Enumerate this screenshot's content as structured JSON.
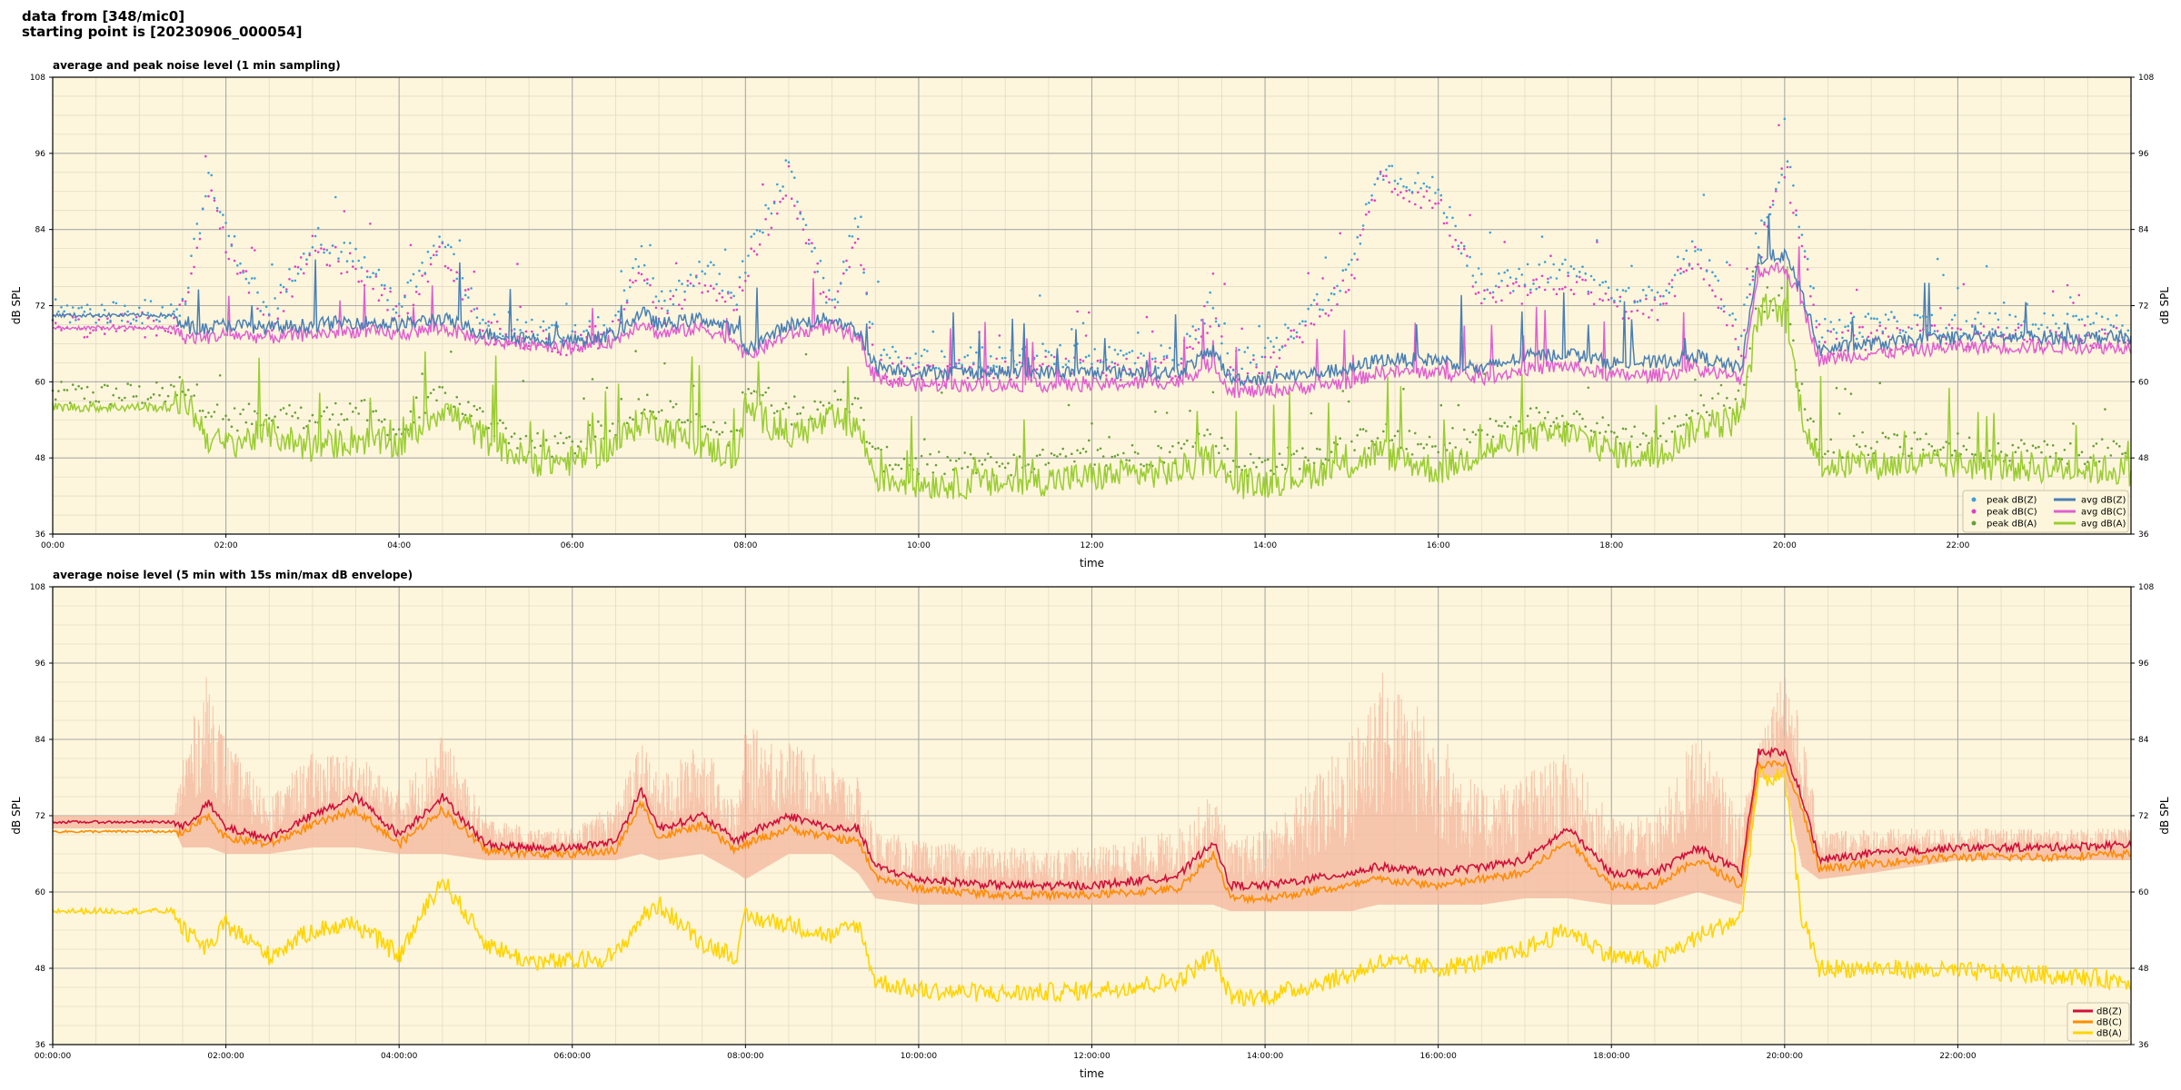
{
  "header": {
    "line1": "data from [348/mic0]",
    "line2": "starting point is [20230906_000054]"
  },
  "colors": {
    "background": "#fdf6dc",
    "grid_major": "#a9a9a9",
    "grid_minor": "#e3dcc4",
    "peak_z": "#3ea0d8",
    "peak_c": "#e040c8",
    "peak_a": "#6a9f3a",
    "avg_z": "#4a7fb4",
    "avg_c": "#e060d0",
    "avg_a": "#9acd32",
    "dbz": "#d0103a",
    "dbc": "#ff8c00",
    "dba": "#ffd400",
    "envelope": "#f5b9a0"
  },
  "chart_data": [
    {
      "type": "line",
      "title": "average and peak noise level (1 min sampling)",
      "xlabel": "time",
      "ylabel": "dB SPL",
      "ylabel_right": "dB SPL",
      "xlim": [
        0,
        24
      ],
      "ylim": [
        36,
        108
      ],
      "yticks": [
        "36",
        "48",
        "60",
        "72",
        "84",
        "96",
        "108"
      ],
      "xtick_hours": [
        0,
        2,
        4,
        6,
        8,
        10,
        12,
        14,
        16,
        18,
        20,
        22
      ],
      "xticks": [
        "00:00",
        "02:00",
        "04:00",
        "06:00",
        "08:00",
        "10:00",
        "12:00",
        "14:00",
        "16:00",
        "18:00",
        "20:00",
        "22:00"
      ],
      "grid": true,
      "legend_position": "lower-right",
      "legend": [
        "peak dB(Z)",
        "peak dB(C)",
        "peak dB(A)",
        "avg dB(Z)",
        "avg dB(C)",
        "avg dB(A)"
      ],
      "x": [
        0.0,
        1.4,
        1.5,
        1.8,
        2.0,
        2.5,
        3.0,
        3.5,
        4.0,
        4.5,
        5.0,
        5.5,
        6.0,
        6.5,
        6.8,
        7.0,
        7.5,
        7.9,
        8.0,
        8.5,
        9.0,
        9.3,
        9.5,
        10.0,
        11.0,
        12.0,
        13.0,
        13.4,
        13.6,
        14.0,
        15.0,
        15.3,
        16.0,
        16.5,
        17.0,
        17.5,
        18.0,
        18.5,
        19.0,
        19.5,
        19.7,
        20.0,
        20.2,
        20.4,
        21.0,
        22.0,
        23.0,
        24.0
      ],
      "series": [
        {
          "name": "avg dB(Z)",
          "values": [
            70.5,
            70.5,
            68.5,
            68.5,
            69,
            68.5,
            69,
            69.5,
            69,
            70,
            67.5,
            67,
            66.5,
            67.5,
            71,
            69,
            70,
            68,
            65,
            69,
            70,
            68,
            62.5,
            61.5,
            61.5,
            61.5,
            61.5,
            65,
            60.5,
            60.5,
            62,
            63.5,
            63.5,
            62,
            64,
            64.5,
            63,
            63,
            64,
            62,
            79.5,
            80,
            74,
            65,
            66,
            67,
            67,
            67
          ]
        },
        {
          "name": "avg dB(C)",
          "values": [
            68.5,
            68.5,
            67,
            67,
            67.5,
            67,
            67.5,
            68,
            67.5,
            68.5,
            66.5,
            66,
            65.5,
            66.5,
            69.5,
            67.5,
            68.5,
            66.5,
            64,
            67.5,
            68.5,
            66.5,
            60.5,
            59.5,
            59.5,
            59.5,
            60,
            63,
            58.5,
            58.5,
            60,
            61.5,
            61.5,
            60.5,
            62,
            62.5,
            61,
            61,
            62,
            60.5,
            77.5,
            78,
            72.5,
            63.5,
            64.5,
            65.5,
            65.5,
            65.5
          ]
        },
        {
          "name": "avg dB(A)",
          "values": [
            56,
            56,
            58,
            51,
            50,
            52,
            49.5,
            51,
            50,
            56,
            51,
            47.5,
            47.5,
            50,
            54,
            53,
            50,
            48,
            56,
            51.5,
            54,
            53,
            45,
            44,
            44,
            45,
            46,
            48,
            44,
            44,
            47,
            49,
            46,
            49,
            51,
            52,
            49,
            48,
            53,
            54,
            71,
            71,
            55,
            47,
            47,
            47,
            46.5,
            46
          ]
        },
        {
          "name": "peak dB(Z)",
          "values": [
            71,
            71,
            72,
            92,
            84,
            70,
            83,
            80,
            72,
            82,
            69,
            68,
            67,
            69,
            80,
            72,
            78,
            74,
            79,
            94,
            71,
            86,
            64,
            63,
            64,
            64,
            64,
            73,
            63,
            64,
            78,
            94,
            90,
            75,
            76,
            78,
            74,
            73,
            82,
            66,
            82,
            96,
            84,
            68,
            69,
            69,
            69,
            69
          ]
        },
        {
          "name": "peak dB(C)",
          "values": [
            69,
            69,
            71,
            90,
            82,
            69,
            81,
            78,
            71,
            80,
            68,
            67,
            66,
            68,
            78,
            70,
            76,
            72,
            77,
            92,
            70,
            84,
            62,
            61,
            62,
            62,
            62,
            71,
            61,
            62,
            76,
            92,
            88,
            73,
            74,
            76,
            72,
            71,
            80,
            64,
            80,
            94,
            82,
            66,
            67,
            67,
            67,
            67
          ]
        },
        {
          "name": "peak dB(A)",
          "values": [
            58,
            58,
            60,
            56,
            54,
            55,
            54,
            56,
            52,
            58,
            54,
            50,
            50,
            53,
            57,
            56,
            53,
            51,
            60,
            55,
            57,
            56,
            48,
            47,
            47,
            48,
            49,
            52,
            47,
            47,
            50,
            52,
            49,
            52,
            54,
            55,
            52,
            51,
            56,
            57,
            73,
            73,
            58,
            50,
            50,
            50,
            49,
            49
          ]
        }
      ]
    },
    {
      "type": "line",
      "title": "average noise level (5 min with 15s min/max dB envelope)",
      "xlabel": "time",
      "ylabel": "dB SPL",
      "ylabel_right": "dB SPL",
      "xlim": [
        0,
        24
      ],
      "ylim": [
        36,
        108
      ],
      "yticks": [
        "36",
        "48",
        "60",
        "72",
        "84",
        "96",
        "108"
      ],
      "xtick_hours": [
        0,
        2,
        4,
        6,
        8,
        10,
        12,
        14,
        16,
        18,
        20,
        22
      ],
      "xticks": [
        "00:00:00",
        "02:00:00",
        "04:00:00",
        "06:00:00",
        "08:00:00",
        "10:00:00",
        "12:00:00",
        "14:00:00",
        "16:00:00",
        "18:00:00",
        "20:00:00",
        "22:00:00"
      ],
      "grid": true,
      "legend_position": "lower-right",
      "legend": [
        "dB(Z)",
        "dB(C)",
        "dB(A)"
      ],
      "x": [
        0.0,
        1.4,
        1.5,
        1.8,
        2.0,
        2.5,
        3.0,
        3.5,
        4.0,
        4.5,
        5.0,
        5.5,
        6.0,
        6.5,
        6.8,
        7.0,
        7.5,
        7.9,
        8.0,
        8.5,
        9.0,
        9.3,
        9.5,
        10.0,
        11.0,
        12.0,
        13.0,
        13.4,
        13.6,
        14.0,
        15.0,
        15.3,
        16.0,
        16.5,
        17.0,
        17.5,
        18.0,
        18.5,
        19.0,
        19.5,
        19.7,
        20.0,
        20.2,
        20.4,
        21.0,
        22.0,
        23.0,
        24.0
      ],
      "series": [
        {
          "name": "dB(Z)",
          "values": [
            71,
            71,
            70,
            74,
            70,
            68.5,
            72,
            75,
            69,
            75,
            67.5,
            67,
            67,
            68,
            76,
            70,
            72,
            68,
            69,
            72,
            70,
            70,
            64,
            62,
            61,
            61,
            62.5,
            68,
            61,
            61,
            63,
            64,
            63,
            64,
            65,
            70,
            63,
            63,
            67,
            63,
            82,
            82,
            75,
            65,
            66,
            67,
            67,
            67.5
          ]
        },
        {
          "name": "dB(C)",
          "values": [
            69.5,
            69.5,
            69,
            72,
            68.5,
            67.5,
            70.5,
            73,
            67.5,
            73,
            66.5,
            66,
            66,
            66.5,
            74,
            68.5,
            70.5,
            66.5,
            67.5,
            70,
            68.5,
            68,
            62.5,
            60.5,
            59.5,
            59.5,
            60.5,
            66,
            59,
            59,
            61,
            62,
            61,
            62,
            63,
            68,
            61,
            61,
            65,
            61,
            80,
            80,
            73,
            63.5,
            64.5,
            65.5,
            65.5,
            66
          ]
        },
        {
          "name": "dB(A)",
          "values": [
            57,
            57,
            54,
            51,
            55,
            50,
            54,
            55,
            50,
            62,
            52,
            49,
            49,
            50,
            56,
            58,
            52,
            50,
            56,
            55,
            53,
            55,
            46,
            44.5,
            44,
            44.5,
            46,
            50,
            43.5,
            43.5,
            47,
            49,
            48,
            49,
            51,
            54,
            50,
            49,
            53,
            56,
            78,
            78,
            56,
            48,
            48,
            47.5,
            47,
            46
          ]
        },
        {
          "name": "envelope max",
          "values": [
            72,
            72,
            82,
            95,
            84,
            75,
            82,
            82,
            76,
            85,
            72,
            70,
            70,
            74,
            84,
            78,
            84,
            74,
            86,
            84,
            80,
            78,
            70,
            68,
            67,
            67,
            70,
            76,
            68,
            70,
            85,
            96,
            86,
            76,
            79,
            82,
            72,
            72,
            86,
            72,
            84,
            96,
            86,
            70,
            70,
            70,
            70,
            70
          ]
        },
        {
          "name": "envelope min",
          "values": [
            70,
            70,
            67,
            67,
            66,
            66,
            67,
            67,
            66,
            66,
            65,
            65,
            65,
            65,
            66,
            65,
            66,
            63,
            62,
            66,
            66,
            63,
            59,
            58,
            58,
            58,
            58,
            58,
            57,
            57,
            57,
            58,
            58,
            58,
            59,
            59,
            58,
            58,
            60,
            58,
            78,
            78,
            64,
            62,
            63,
            65,
            65,
            65
          ]
        }
      ]
    }
  ]
}
